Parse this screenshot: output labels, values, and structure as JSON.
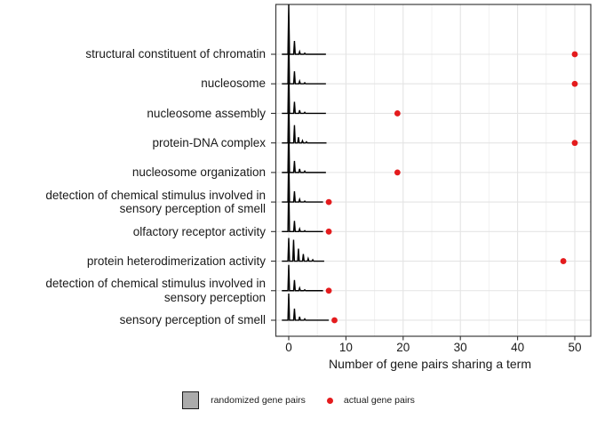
{
  "chart_data": {
    "type": "scatter",
    "title": "",
    "xlabel": "Number of gene pairs sharing a term",
    "ylabel": "",
    "xlim": [
      -2.3,
      52.8
    ],
    "grid": true,
    "legend_position": "bottom",
    "categories": [
      "structural constituent of chromatin",
      "nucleosome",
      "nucleosome assembly",
      "protein-DNA complex",
      "nucleosome organization",
      "detection of chemical stimulus involved in sensory perception of smell",
      "olfactory receptor activity",
      "protein heterodimerization activity",
      "detection of chemical stimulus involved in sensory perception",
      "sensory perception of smell"
    ],
    "axes": {
      "x_ticks": [
        0,
        10,
        20,
        30,
        40,
        50
      ],
      "x_tick_labels": [
        "0",
        "10",
        "20",
        "30",
        "40",
        "50"
      ],
      "x_minor": [
        5,
        15,
        25,
        35,
        45
      ]
    },
    "series": [
      {
        "name": "randomized gene pairs",
        "kind": "density-ridge",
        "description": "null distribution of shared gene pairs per term; sharp peaks near 0-3",
        "profiles": [
          {
            "peaks": [
              [
                0,
                56
              ],
              [
                1.0,
                15
              ],
              [
                1.9,
                3
              ],
              [
                2.8,
                1.2
              ]
            ],
            "end": 6.5
          },
          {
            "peaks": [
              [
                0,
                56
              ],
              [
                1.0,
                14
              ],
              [
                1.9,
                3
              ],
              [
                2.8,
                1.2
              ]
            ],
            "end": 6.5
          },
          {
            "peaks": [
              [
                0,
                56
              ],
              [
                1.0,
                13
              ],
              [
                1.9,
                3.5
              ],
              [
                2.8,
                1.2
              ]
            ],
            "end": 6.5
          },
          {
            "peaks": [
              [
                0,
                56
              ],
              [
                1.0,
                20
              ],
              [
                1.7,
                6.5
              ],
              [
                2.4,
                2.5
              ],
              [
                3.1,
                1.2
              ]
            ],
            "end": 6.6
          },
          {
            "peaks": [
              [
                0,
                56
              ],
              [
                1.0,
                13
              ],
              [
                1.9,
                4
              ],
              [
                2.8,
                1.5
              ]
            ],
            "end": 6.5
          },
          {
            "peaks": [
              [
                0,
                55
              ],
              [
                1.0,
                12
              ],
              [
                1.9,
                3
              ],
              [
                2.8,
                1
              ]
            ],
            "end": 6.0
          },
          {
            "peaks": [
              [
                0,
                55
              ],
              [
                1.0,
                12
              ],
              [
                1.9,
                3
              ],
              [
                2.8,
                1
              ]
            ],
            "end": 6.0
          },
          {
            "peaks": [
              [
                0,
                26
              ],
              [
                0.85,
                24
              ],
              [
                1.7,
                14
              ],
              [
                2.55,
                8
              ],
              [
                3.4,
                3
              ],
              [
                4.2,
                1.5
              ]
            ],
            "end": 6.2
          },
          {
            "peaks": [
              [
                0,
                29
              ],
              [
                1.0,
                12
              ],
              [
                1.9,
                3
              ],
              [
                2.8,
                1
              ]
            ],
            "end": 6.0
          },
          {
            "peaks": [
              [
                0,
                30
              ],
              [
                1.0,
                13
              ],
              [
                1.9,
                4
              ],
              [
                2.8,
                1.5
              ]
            ],
            "end": 7.0
          }
        ]
      },
      {
        "name": "actual gene pairs",
        "kind": "scatter",
        "values": [
          50,
          50,
          19,
          50,
          19,
          7,
          7,
          48,
          7,
          8
        ]
      }
    ],
    "colors": {
      "actual_dot": "#e41b1d",
      "ridge_line": "#000000",
      "ridge_fill": "#ababab",
      "grid_major": "#e4e4e4",
      "grid_minor": "#efefef",
      "panel_border": "#3c3c3c",
      "tick": "#333333",
      "text": "#1a1a1a",
      "legend_swatch_fill": "#ababab",
      "legend_swatch_border": "#1a1a1a",
      "background": "#ffffff"
    }
  }
}
